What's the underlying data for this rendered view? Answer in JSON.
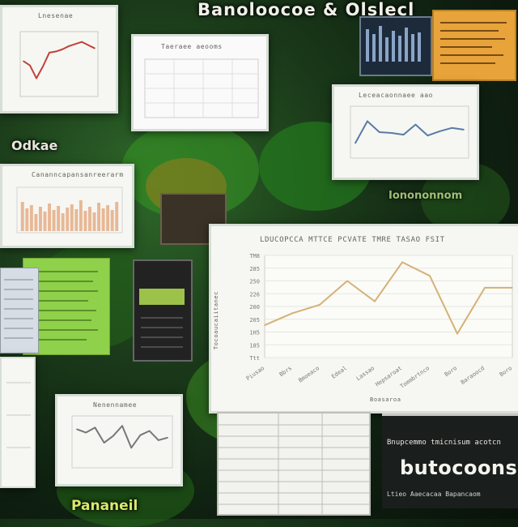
{
  "title": "Banoloocoe & Olslecl",
  "side_label": "Odkae",
  "bottom_left_label": "Pananeil",
  "band_text": "Ionononnom",
  "bottom_right": {
    "top_text": "Bnupcemmo tmicnisum acotcn",
    "big_text": "butocoons",
    "bottom_text": "Ltieo Aaecacaa Bapancaom"
  },
  "colors": {
    "line_main": "#d4b275",
    "line_blue": "#5a7aa8",
    "bar": "#e8b896",
    "line_red": "#c2413a",
    "accent_green": "#8fd14a",
    "note_orange": "#e8a43a"
  },
  "main_chart": {
    "title": "LDUCOPCCA MTTCE PCVATE TMRE TASAO FSIT",
    "ylabel": "Tocoaucaiitanec",
    "yticks": [
      "TM8",
      "285",
      "250",
      "226",
      "200",
      "205",
      "1H5",
      "185",
      "Ttt"
    ],
    "xticks": [
      "Piusao",
      "Bbrs",
      "Bmoeaco",
      "Edeal",
      "Lassao",
      "Hepsaroat",
      "Tommbrtnco",
      "Boro",
      "Baraoocd",
      "Boro"
    ],
    "xlabel": "Boasaroa"
  },
  "chart_data": [
    {
      "type": "line",
      "title": "LDUCOPCCA MTTCE PCVATE TMRE TASAO FSIT",
      "ylabel": "Tocoaucaiitanec",
      "xlabel": "Boasaroa",
      "y_tick_labels": [
        "TM8",
        "285",
        "250",
        "226",
        "200",
        "205",
        "1H5",
        "185",
        "Ttt"
      ],
      "categories": [
        "Piusao",
        "Bbrs",
        "Bmoeaco",
        "Edeal",
        "Lassao",
        "Hepsaroat",
        "Tommbrtnco",
        "Boro",
        "Baraoocd",
        "Boro"
      ],
      "values": [
        1.9,
        2.6,
        3.1,
        4.5,
        3.3,
        5.6,
        4.8,
        1.4,
        4.1,
        4.1
      ],
      "ylim": [
        0,
        6
      ]
    },
    {
      "type": "line",
      "values": [
        3.0,
        2.6,
        1.4,
        2.5,
        3.8,
        3.9,
        4.1,
        4.4,
        4.6,
        4.8,
        4.5,
        4.2
      ],
      "ylim": [
        0,
        5
      ]
    },
    {
      "type": "line",
      "values": [
        1.2,
        3.8,
        2.5,
        2.4,
        2.2,
        3.4,
        2.1,
        2.6,
        3.0,
        2.8
      ],
      "ylim": [
        0,
        5
      ]
    },
    {
      "type": "bar",
      "values": [
        3.6,
        2.8,
        3.2,
        2.1,
        3.0,
        2.4,
        3.4,
        2.6,
        3.1,
        2.2,
        2.9,
        3.3,
        2.7,
        3.8,
        2.5,
        3.0,
        2.3,
        3.5,
        2.8,
        3.2,
        2.6,
        3.6
      ],
      "ylim": [
        0,
        5
      ]
    },
    {
      "type": "line",
      "values": [
        4.0,
        3.6,
        4.2,
        2.4,
        3.2,
        4.4,
        1.8,
        3.3,
        3.8,
        2.7,
        3.0
      ],
      "ylim": [
        0,
        5
      ]
    }
  ]
}
